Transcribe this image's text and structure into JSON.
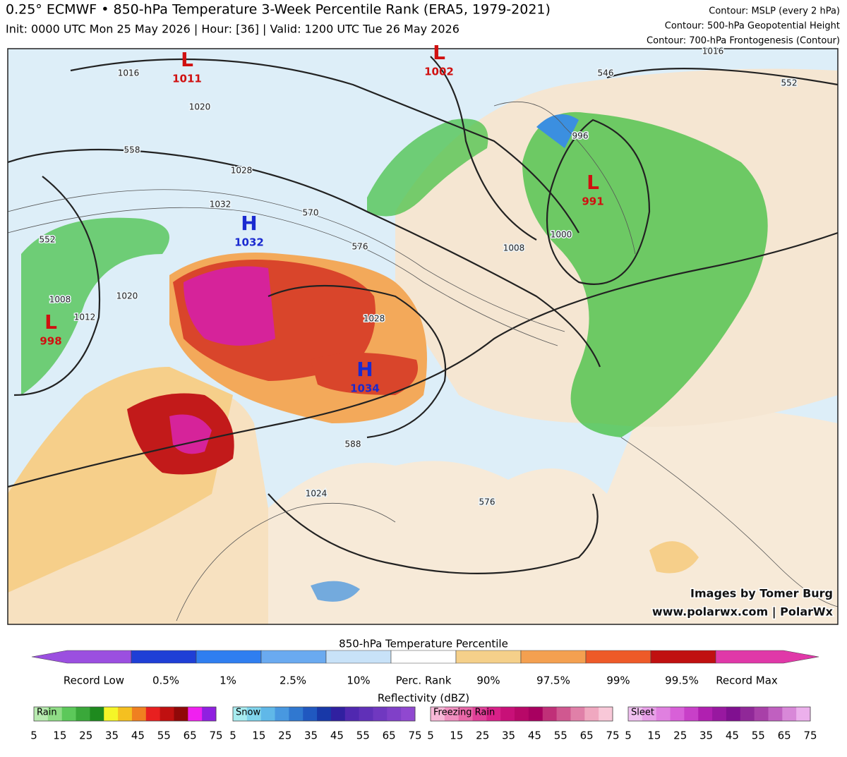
{
  "header": {
    "title": "0.25° ECMWF • 850-hPa Temperature 3-Week Percentile Rank (ERA5, 1979-2021)",
    "subtitle": "Init: 0000 UTC Mon 25 May 2026 | Hour: [36] | Valid: 1200 UTC Tue 26 May 2026",
    "contours": [
      "Contour: MSLP (every 2 hPa)",
      "Contour: 500-hPa Geopotential Height",
      "Contour: 700-hPa Frontogenesis (Contour)"
    ]
  },
  "map": {
    "centers": [
      {
        "type": "L",
        "value": 1011
      },
      {
        "type": "L",
        "value": 1002
      },
      {
        "type": "L",
        "value": 991
      },
      {
        "type": "H",
        "value": 1032
      },
      {
        "type": "L",
        "value": 998
      },
      {
        "type": "H",
        "value": 1034
      }
    ],
    "contour_labels": [
      1016,
      1020,
      1028,
      1032,
      558,
      570,
      576,
      546,
      552,
      996,
      1000,
      1008,
      1028,
      588,
      1024,
      576,
      1016,
      552,
      1020,
      1012,
      1008
    ],
    "credits": [
      "Images by Tomer Burg",
      "www.polarwx.com | PolarWx"
    ]
  },
  "colorbar": {
    "title": "850-hPa Temperature Percentile",
    "labels": [
      "Record Low",
      "0.5%",
      "1%",
      "2.5%",
      "10%",
      "Perc. Rank",
      "90%",
      "97.5%",
      "99%",
      "99.5%",
      "Record Max"
    ]
  },
  "reflectivity": {
    "title": "Reflectivity (dBZ)",
    "legends": [
      {
        "name": "Rain",
        "ticks": [
          5,
          15,
          25,
          35,
          45,
          55,
          65,
          75
        ]
      },
      {
        "name": "Snow",
        "ticks": [
          5,
          15,
          25,
          35,
          45,
          55,
          65,
          75
        ]
      },
      {
        "name": "Freezing Rain",
        "ticks": [
          5,
          15,
          25,
          35,
          45,
          55,
          65,
          75
        ]
      },
      {
        "name": "Sleet",
        "ticks": [
          5,
          15,
          25,
          35,
          45,
          55,
          65,
          75
        ]
      }
    ]
  }
}
